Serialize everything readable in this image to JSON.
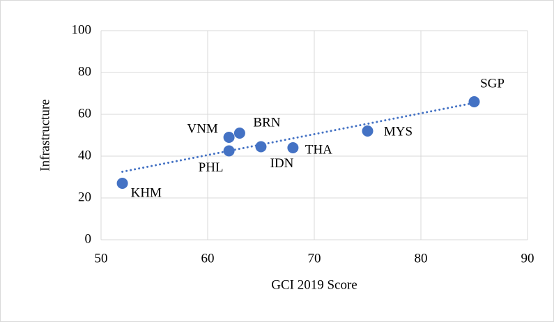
{
  "chart_data": {
    "type": "scatter",
    "x_label": "GCI 2019 Score",
    "y_label": "Infrastructure",
    "x": [
      52,
      62,
      62,
      63,
      65,
      68,
      75,
      85
    ],
    "values": [
      27,
      42.5,
      49,
      51,
      44.5,
      44,
      52,
      66
    ],
    "labels": [
      "KHM",
      "PHL",
      "VNM",
      "BRN",
      "IDN",
      "THA",
      "MYS",
      "SGP"
    ],
    "color": "#4472c4",
    "xlim": [
      50,
      90
    ],
    "xticks": [
      50,
      60,
      70,
      80,
      90
    ],
    "ylim": [
      0,
      100
    ],
    "yticks": [
      0,
      20,
      40,
      60,
      80,
      100
    ],
    "grid": true,
    "trendline": true
  }
}
